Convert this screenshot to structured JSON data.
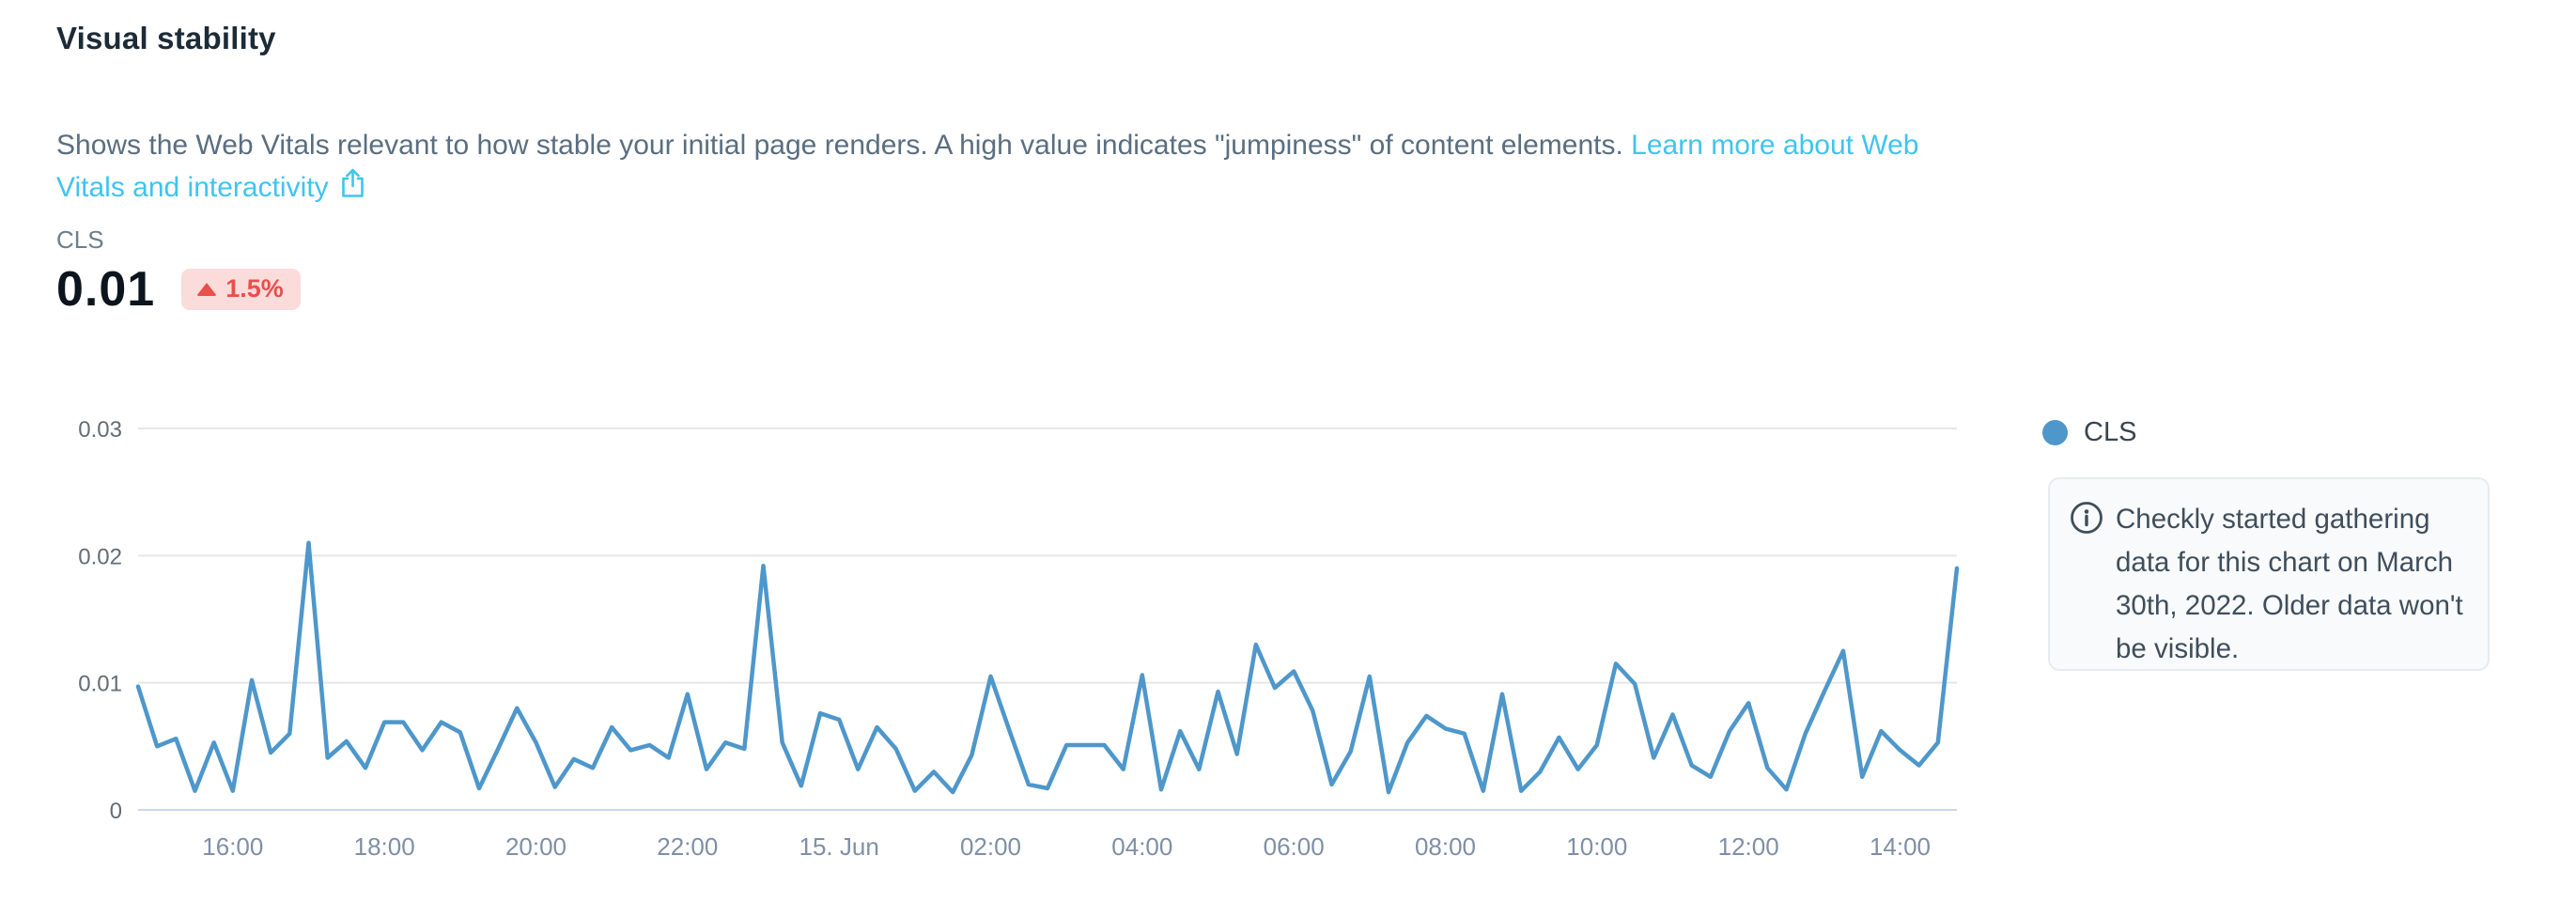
{
  "header": {
    "title": "Visual stability",
    "description": "Shows the Web Vitals relevant to how stable your initial page renders. A high value indicates \"jumpiness\" of content elements.",
    "link_text": "Learn more about Web Vitals and interactivity"
  },
  "metric": {
    "label": "CLS",
    "value": "0.01",
    "delta": "1.5%",
    "delta_direction": "up"
  },
  "legend": {
    "label": "CLS"
  },
  "info_note": {
    "text": "Checkly started gathering data for this chart on March 30th, 2022. Older data won't be visible."
  },
  "colors": {
    "line": "#4e97cb",
    "link": "#3fc4f0",
    "badge_bg": "#fcdbdb",
    "badge_text": "#e94f4b",
    "grid": "#e6e6e6",
    "axis_line": "#ccd6eb"
  },
  "chart_data": {
    "type": "line",
    "title": "CLS over time",
    "xlabel": "",
    "ylabel": "",
    "ylim": [
      0,
      0.03
    ],
    "y_ticks": [
      0,
      0.01,
      0.02,
      0.03
    ],
    "grid": true,
    "legend_position": "right",
    "x_tick_labels": [
      "16:00",
      "18:00",
      "20:00",
      "22:00",
      "15. Jun",
      "02:00",
      "04:00",
      "06:00",
      "08:00",
      "10:00",
      "12:00",
      "14:00"
    ],
    "x_tick_minutes_from_start": [
      75,
      195,
      315,
      435,
      555,
      675,
      795,
      915,
      1035,
      1155,
      1275,
      1395
    ],
    "total_minutes": 1440,
    "series": [
      {
        "name": "CLS",
        "color": "#4e97cb",
        "values": [
          0.0097,
          0.005,
          0.0056,
          0.0015,
          0.0053,
          0.0015,
          0.0102,
          0.0045,
          0.006,
          0.021,
          0.0041,
          0.0054,
          0.0033,
          0.0069,
          0.0069,
          0.0047,
          0.0069,
          0.0061,
          0.0017,
          0.0048,
          0.008,
          0.0053,
          0.0018,
          0.004,
          0.0033,
          0.0065,
          0.0047,
          0.0051,
          0.0041,
          0.0091,
          0.0032,
          0.0053,
          0.0048,
          0.0192,
          0.0053,
          0.0019,
          0.0076,
          0.0071,
          0.0032,
          0.0065,
          0.0048,
          0.0015,
          0.003,
          0.0014,
          0.0043,
          0.0105,
          0.0062,
          0.002,
          0.0017,
          0.0051,
          0.0051,
          0.0051,
          0.0032,
          0.0106,
          0.0016,
          0.0062,
          0.0032,
          0.0093,
          0.0044,
          0.013,
          0.0096,
          0.0109,
          0.0078,
          0.002,
          0.0046,
          0.0105,
          0.0014,
          0.0053,
          0.0074,
          0.0064,
          0.006,
          0.0015,
          0.0091,
          0.0015,
          0.003,
          0.0057,
          0.0032,
          0.0051,
          0.0115,
          0.0099,
          0.0041,
          0.0075,
          0.0035,
          0.0026,
          0.0062,
          0.0084,
          0.0033,
          0.0016,
          0.006,
          0.0093,
          0.0125,
          0.0026,
          0.0062,
          0.0047,
          0.0035,
          0.0053,
          0.019
        ]
      }
    ]
  }
}
